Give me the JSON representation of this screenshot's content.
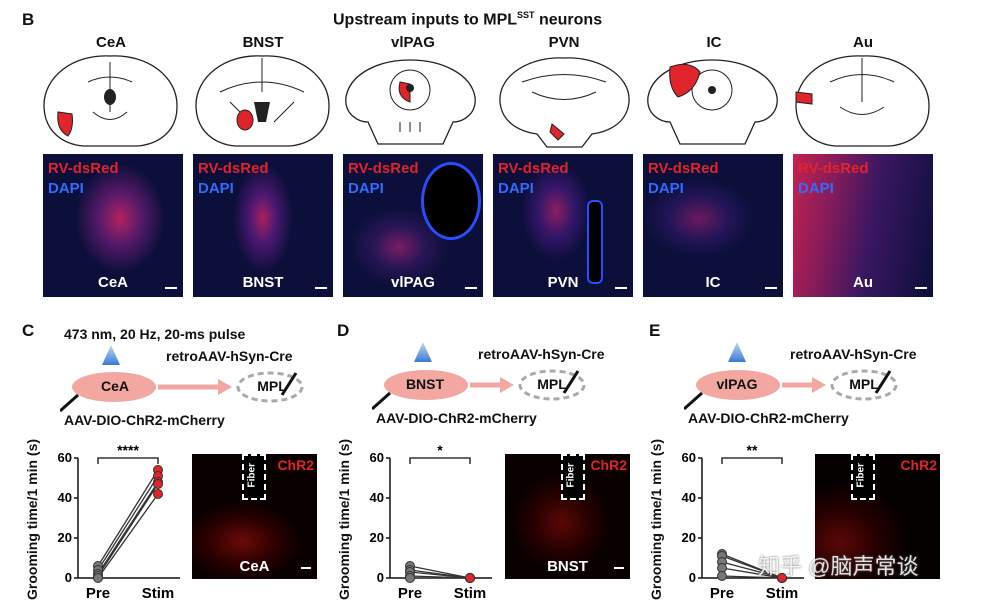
{
  "panel_b": {
    "letter": "B",
    "title_pre": "Upstream inputs to MPL",
    "title_sup": "SST",
    "title_post": " neurons",
    "regions": [
      "CeA",
      "BNST",
      "vlPAG",
      "PVN",
      "IC",
      "Au"
    ],
    "micro_label_red": "RV-dsRed",
    "micro_label_blue": "DAPI"
  },
  "panel_c": {
    "letter": "C",
    "stim_desc": "473 nm, 20 Hz, 20-ms pulse",
    "source": "CeA",
    "target": "MPL",
    "virus_target": "retroAAV-hSyn-Cre",
    "virus_source": "AAV-DIO-ChR2-mCherry",
    "significance": "****",
    "chr_label": "ChR2",
    "fiber_label": "Fiber",
    "region": "CeA"
  },
  "panel_d": {
    "letter": "D",
    "source": "BNST",
    "target": "MPL",
    "virus_target": "retroAAV-hSyn-Cre",
    "virus_source": "AAV-DIO-ChR2-mCherry",
    "significance": "*",
    "chr_label": "ChR2",
    "fiber_label": "Fiber",
    "region": "BNST"
  },
  "panel_e": {
    "letter": "E",
    "source": "vlPAG",
    "target": "MPL",
    "virus_target": "retroAAV-hSyn-Cre",
    "virus_source": "AAV-DIO-ChR2-mCherry",
    "significance": "**",
    "chr_label": "ChR2",
    "fiber_label": "Fiber",
    "region": ""
  },
  "watermark": "知乎 @脑声常谈",
  "chart_data": [
    {
      "type": "line",
      "panel": "C",
      "ylabel": "Grooming time/1 min (s)",
      "categories": [
        "Pre",
        "Stim"
      ],
      "ylim": [
        0,
        60
      ],
      "yticks": [
        0,
        20,
        40,
        60
      ],
      "series": [
        {
          "values": [
            6,
            54
          ]
        },
        {
          "values": [
            4,
            51
          ]
        },
        {
          "values": [
            2,
            48
          ]
        },
        {
          "values": [
            1,
            47
          ]
        },
        {
          "values": [
            0,
            42
          ]
        }
      ]
    },
    {
      "type": "line",
      "panel": "D",
      "ylabel": "Grooming time/1 min (s)",
      "categories": [
        "Pre",
        "Stim"
      ],
      "ylim": [
        0,
        60
      ],
      "yticks": [
        0,
        20,
        40,
        60
      ],
      "series": [
        {
          "values": [
            6,
            0
          ]
        },
        {
          "values": [
            4,
            0
          ]
        },
        {
          "values": [
            3,
            0
          ]
        },
        {
          "values": [
            1,
            0
          ]
        },
        {
          "values": [
            0,
            0
          ]
        }
      ]
    },
    {
      "type": "line",
      "panel": "E",
      "ylabel": "Grooming time/1 min (s)",
      "categories": [
        "Pre",
        "Stim"
      ],
      "ylim": [
        0,
        60
      ],
      "yticks": [
        0,
        20,
        40,
        60
      ],
      "series": [
        {
          "values": [
            12,
            0
          ]
        },
        {
          "values": [
            11,
            0
          ]
        },
        {
          "values": [
            8,
            0
          ]
        },
        {
          "values": [
            5,
            0
          ]
        },
        {
          "values": [
            1,
            0
          ]
        }
      ]
    }
  ]
}
